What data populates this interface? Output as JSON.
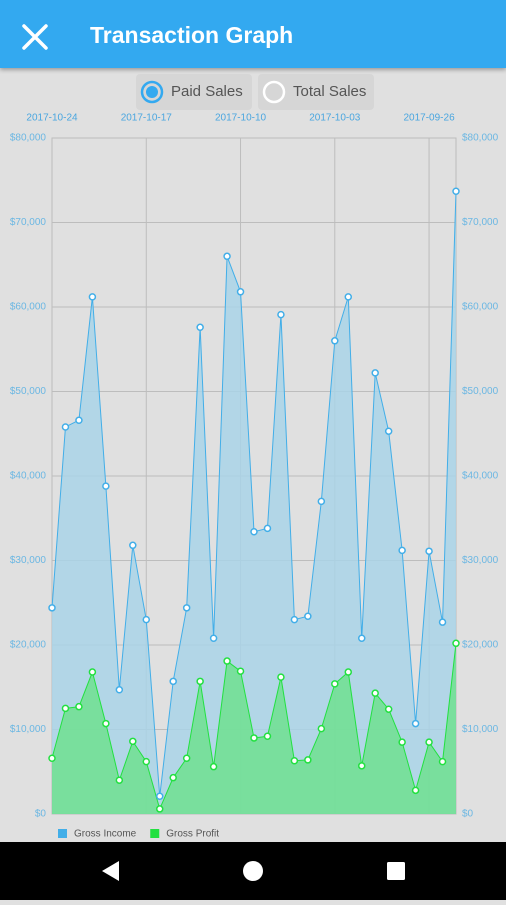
{
  "header": {
    "title": "Transaction Graph"
  },
  "options": {
    "items": [
      "Paid Sales",
      "Total Sales"
    ],
    "selected": 0
  },
  "chart_data": {
    "type": "area",
    "x": [
      "2017-10-24",
      "2017-10-23",
      "2017-10-22",
      "2017-10-21",
      "2017-10-20",
      "2017-10-19",
      "2017-10-18",
      "2017-10-17",
      "2017-10-16",
      "2017-10-15",
      "2017-10-14",
      "2017-10-13",
      "2017-10-12",
      "2017-10-11",
      "2017-10-10",
      "2017-10-09",
      "2017-10-08",
      "2017-10-07",
      "2017-10-06",
      "2017-10-05",
      "2017-10-04",
      "2017-10-03",
      "2017-10-02",
      "2017-10-01",
      "2017-09-30",
      "2017-09-29",
      "2017-09-28",
      "2017-09-27",
      "2017-09-26",
      "2017-09-25",
      "2017-09-24"
    ],
    "xlim": [
      "2017-10-24",
      "2017-09-24"
    ],
    "xticks": [
      "2017-10-24",
      "2017-10-17",
      "2017-10-10",
      "2017-10-03",
      "2017-09-26"
    ],
    "ylim": [
      0,
      80000
    ],
    "yticks": [
      {
        "value": 0,
        "label": "$0"
      },
      {
        "value": 10000,
        "label": "$10,000"
      },
      {
        "value": 20000,
        "label": "$20,000"
      },
      {
        "value": 30000,
        "label": "$30,000"
      },
      {
        "value": 40000,
        "label": "$40,000"
      },
      {
        "value": 50000,
        "label": "$50,000"
      },
      {
        "value": 60000,
        "label": "$60,000"
      },
      {
        "value": 70000,
        "label": "$70,000"
      },
      {
        "value": 80000,
        "label": "$80,000"
      }
    ],
    "grid": true,
    "legend": "bottom-left",
    "series": [
      {
        "name": "Gross Income",
        "color": "#42aee8",
        "fill": "#a9d3e8",
        "values": [
          24400,
          45800,
          46600,
          61200,
          38800,
          14700,
          31800,
          23000,
          2100,
          15700,
          24400,
          57600,
          20800,
          66000,
          61800,
          33400,
          33800,
          59100,
          23000,
          23400,
          37000,
          56000,
          61200,
          20800,
          52200,
          45300,
          31200,
          10700,
          31100,
          22700,
          73700
        ]
      },
      {
        "name": "Gross Profit",
        "color": "#22e040",
        "fill": "#6fe08f",
        "values": [
          6600,
          12500,
          12700,
          16800,
          10700,
          4000,
          8600,
          6200,
          600,
          4300,
          6600,
          15700,
          5600,
          18100,
          16900,
          9000,
          9200,
          16200,
          6300,
          6400,
          10100,
          15400,
          16800,
          5700,
          14300,
          12400,
          8500,
          2800,
          8500,
          6200,
          20200
        ]
      }
    ]
  }
}
